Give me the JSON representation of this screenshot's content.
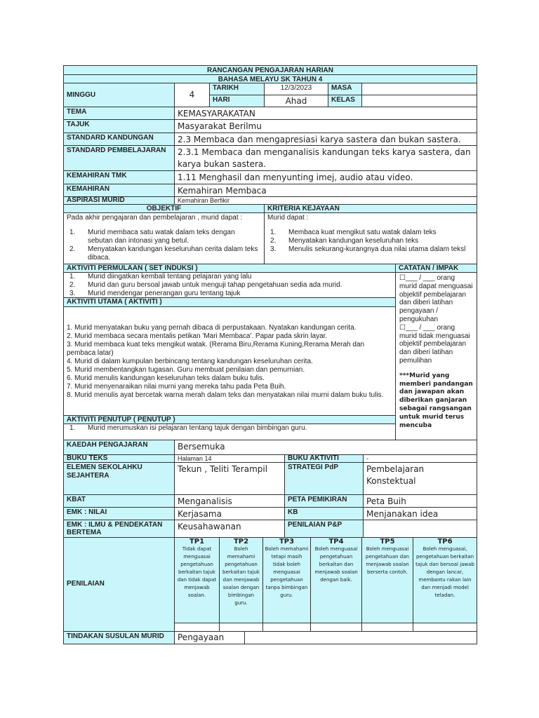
{
  "header": {
    "title": "RANCANGAN PENGAJARAN HARIAN",
    "subtitle": "BAHASA MELAYU SK TAHUN 4"
  },
  "info": {
    "minggu_label": "MINGGU",
    "minggu": "4",
    "tarikh_label": "TARIKH",
    "tarikh": "12/3/2023",
    "masa_label": "MASA",
    "masa": "",
    "hari_label": "HARI",
    "hari": "Ahad",
    "kelas_label": "KELAS",
    "kelas": ""
  },
  "rows": [
    {
      "label": "TEMA",
      "value": "KEMASYARAKATAN"
    },
    {
      "label": "TAJUK",
      "value": "Masyarakat Berilmu"
    },
    {
      "label": "STANDARD KANDUNGAN",
      "value": "2.3 Membaca dan mengapresiasi karya sastera dan bukan sastera."
    },
    {
      "label": "STANDARD PEMBELAJARAN",
      "value": "2.3.1 Membaca dan menganalisis kandungan teks karya sastera, dan karya bukan sastera."
    },
    {
      "label": "KEMAHIRAN TMK",
      "value": "1.11 Menghasil dan menyunting imej, audio atau video."
    },
    {
      "label": "KEMAHIRAN",
      "value": "Kemahiran Membaca"
    },
    {
      "label": "ASPIRASI MURID",
      "value": "Kemahiran Berfikir"
    }
  ],
  "objektif": {
    "label": "OBJEKTIF",
    "intro": "Pada akhir pengajaran dan pembelajaran , murid dapat :",
    "items": [
      "Murid membaca satu watak dalam teks dengan sebutan dan intonasi yang betul.",
      "Menyatakan kandungan keseluruhan cerita dalam teks dibaca."
    ]
  },
  "kriteria": {
    "label": "KRITERIA KEJAYAAN",
    "intro": "Murid dapat :",
    "items": [
      "Membaca kuat mengikut satu watak dalam teks",
      "Menyatakan kandungan keseluruhan teks",
      "Menulis sekurang-kurangnya dua nilai utama dalam teksl"
    ]
  },
  "permulaan": {
    "label": "AKTIVITI PERMULAAN ( SET INDUKSI )",
    "items": [
      "Murid diingatkan kembali tentang pelajaran yang lalu",
      "Murid dan guru bersoal jawab untuk menguji tahap pengetahuan sedia ada murid.",
      "Murid mendengar penerangan guru tentang tajuk"
    ]
  },
  "utama": {
    "label": "AKTIVITI UTAMA ( AKTIVITI )",
    "items": [
      "1. Murid menyatakan buku yang pernah dibaca di perpustakaan. Nyatakan kandungan cerita.",
      "2. Murid membaca secara mentalis petikan 'Mari Membaca'. Papar pada skrin layar.",
      "3. Murid membaca kuat teks mengikut watak. (Rerama Biru,Rerama Kuning,Rerama Merah dan pembaca latar)",
      "4. Murid di dalam kumpulan berbincang tentang kandungan keseluruhan cerita.",
      "5. Murid membentangkan tugasan. Guru membuat penilaian dan pemurnian.",
      "6. Murid menulis kandungan keseluruhan teks dalam buku tulis.",
      "7. Murid menyenaraikan nilai murni  yang mereka tahu pada Peta Buih.",
      "8. Murid menulis ayat bercetak warna merah dalam teks dan menyatakan nilai murni dalam buku tulis."
    ]
  },
  "penutup": {
    "label": "AKTIVITI PENUTUP ( PENUTUP )",
    "items": [
      "Murid merumuskan isi pelajaran tentang tajuk dengan bimbingan guru."
    ]
  },
  "catatan": {
    "label": "CATATAN / IMPAK",
    "text1": "☐___ / ___ orang murid dapat menguasai objektif pembelajaran dan diberi latihan pengayaan / pengukuhan",
    "text2": "☐___ / ___ orang murid tidak menguasai objektif pembelajaran dan diberi latihan pemulihan",
    "note": "***Murid yang memberi pandangan dan jawapan akan diberikan ganjaran sebagai rangsangan untuk murid terus mencuba"
  },
  "kaedah": {
    "label": "KAEDAH PENGAJARAN",
    "value": "Bersemuka"
  },
  "buku_teks": {
    "label": "BUKU TEKS",
    "value": "Halaman  14"
  },
  "buku_aktiviti": {
    "label": "BUKU AKTIVITI",
    "value": "-"
  },
  "elemen": {
    "label": "ELEMEN SEKOLAHKU SEJAHTERA",
    "value": "Tekun , Teliti Terampil"
  },
  "strategi": {
    "label": "STRATEGI PdP",
    "value": "Pembelajaran Konstektual"
  },
  "kbat": {
    "label": "KBAT",
    "value": "Menganalisis"
  },
  "peta": {
    "label": "PETA PEMIKIRAN",
    "value": "Peta Buih"
  },
  "nilai": {
    "label": "EMK : NILAI",
    "value": "Kerjasama"
  },
  "kb": {
    "label": "KB",
    "value": "Menjanakan idea"
  },
  "ilmu": {
    "label": "EMK : ILMU & PENDEKATAN BERTEMA",
    "value": "Keusahawanan"
  },
  "penilaian_pp": {
    "label": "PENILAIAN P&P",
    "value": ""
  },
  "penilaian": {
    "label": "PENILAIAN",
    "tp": [
      {
        "h": "TP1",
        "d": "Tidak dapat menguasai pengetahuan berkaitan tajuk dan tidak dapat menjawab soalan."
      },
      {
        "h": "TP2",
        "d": "Boleh memahami pengetahuan berkaitan tajuk dan menjawab soalan dengan bimbingan guru."
      },
      {
        "h": "TP3",
        "d": "Boleh memahami tetapi masih tidak boleh menguasai pengetahuan tanpa bimbingan guru."
      },
      {
        "h": "TP4",
        "d": "Boleh menguasai pengetahuan berkaitan dan menjawab soalan dengan baik."
      },
      {
        "h": "TP5",
        "d": "Boleh menguasai pengetahuan dan menjawab soalan berserta contoh."
      },
      {
        "h": "TP6",
        "d": "Boleh menguasai, pengetahuan berkaitan tajuk dan bersoal jawab dengan lancar, membantu rakan lain dan menjadi model teladan."
      }
    ]
  },
  "tindakan": {
    "label": "TINDAKAN SUSULAN MURID",
    "value": "Pengayaan"
  },
  "colors": {
    "header_fill": "#c9f6fb",
    "border": "#333333"
  }
}
